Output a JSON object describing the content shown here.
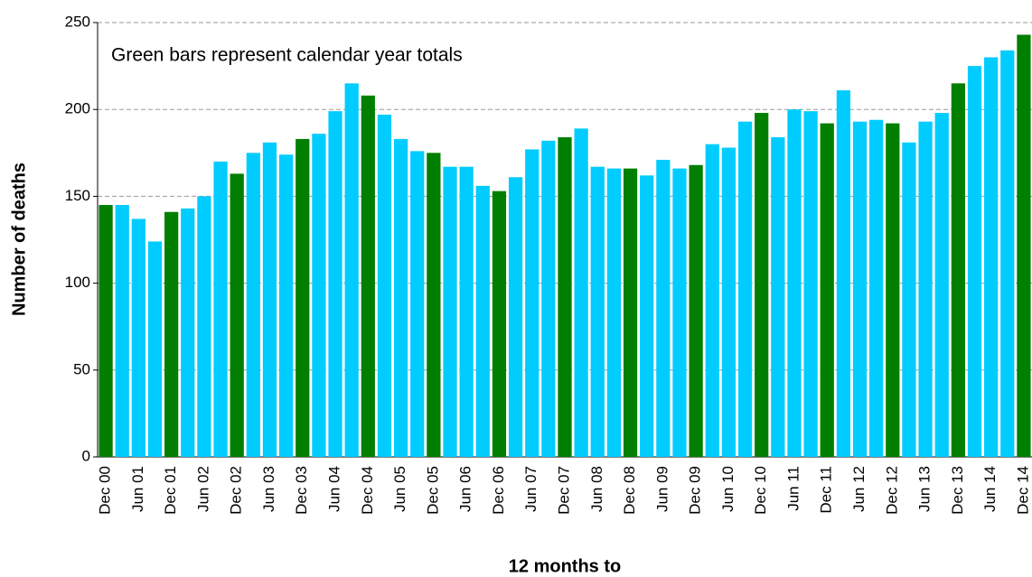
{
  "chart_data": {
    "type": "bar",
    "annotation": "Green bars represent calendar year totals",
    "x_label": "12 months to",
    "y_label": "Number of deaths",
    "categories": [
      "Dec 00",
      null,
      "Jun 01",
      null,
      "Dec 01",
      null,
      "Jun 02",
      null,
      "Dec 02",
      null,
      "Jun 03",
      null,
      "Dec 03",
      null,
      "Jun 04",
      null,
      "Dec 04",
      null,
      "Jun 05",
      null,
      "Dec 05",
      null,
      "Jun 06",
      null,
      "Dec 06",
      null,
      "Jun 07",
      null,
      "Dec 07",
      null,
      "Jun 08",
      null,
      "Dec 08",
      null,
      "Jun 09",
      null,
      "Dec 09",
      null,
      "Jun 10",
      null,
      "Dec 10",
      null,
      "Jun 11",
      null,
      "Dec 11",
      null,
      "Jun 12",
      null,
      "Dec 12",
      null,
      "Jun 13",
      null,
      "Dec 13",
      null,
      "Jun 14",
      null,
      "Dec 14"
    ],
    "values": [
      145,
      145,
      137,
      124,
      141,
      143,
      150,
      170,
      163,
      175,
      181,
      174,
      183,
      186,
      199,
      215,
      208,
      197,
      183,
      176,
      175,
      167,
      167,
      156,
      153,
      161,
      177,
      182,
      184,
      189,
      167,
      166,
      166,
      162,
      171,
      166,
      168,
      180,
      178,
      193,
      198,
      184,
      200,
      199,
      192,
      211,
      193,
      194,
      192,
      181,
      193,
      198,
      215,
      225,
      230,
      234,
      243
    ],
    "colors": [
      "#007f00",
      "#00ccff",
      "#00ccff",
      "#00ccff",
      "#007f00",
      "#00ccff",
      "#00ccff",
      "#00ccff",
      "#007f00",
      "#00ccff",
      "#00ccff",
      "#00ccff",
      "#007f00",
      "#00ccff",
      "#00ccff",
      "#00ccff",
      "#007f00",
      "#00ccff",
      "#00ccff",
      "#00ccff",
      "#007f00",
      "#00ccff",
      "#00ccff",
      "#00ccff",
      "#007f00",
      "#00ccff",
      "#00ccff",
      "#00ccff",
      "#007f00",
      "#00ccff",
      "#00ccff",
      "#00ccff",
      "#007f00",
      "#00ccff",
      "#00ccff",
      "#00ccff",
      "#007f00",
      "#00ccff",
      "#00ccff",
      "#00ccff",
      "#007f00",
      "#00ccff",
      "#00ccff",
      "#00ccff",
      "#007f00",
      "#00ccff",
      "#00ccff",
      "#00ccff",
      "#007f00",
      "#00ccff",
      "#00ccff",
      "#00ccff",
      "#007f00",
      "#00ccff",
      "#00ccff",
      "#00ccff",
      "#007f00"
    ],
    "ylim": [
      0,
      250
    ],
    "yticks": [
      0,
      50,
      100,
      150,
      200,
      250
    ],
    "grid": true
  }
}
